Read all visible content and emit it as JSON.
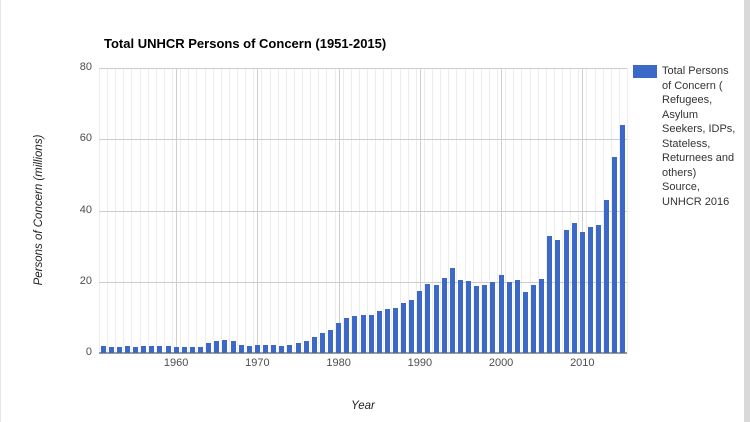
{
  "chart": {
    "title": "Total UNHCR Persons of Concern (1951-2015)",
    "y_axis_title": "Persons of Concern (millions)",
    "x_axis_title": "Year",
    "y_ticks": [
      0,
      20,
      40,
      60,
      80
    ],
    "x_ticks": [
      1960,
      1970,
      1980,
      1990,
      2000,
      2010
    ],
    "legend": {
      "lines": [
        "Total Persons",
        "of Concern (",
        "Refugees,",
        "Asylum",
        "Seekers, IDPs,",
        "Stateless,",
        "Returnees and",
        "others)",
        "Source,",
        "UNHCR 2016"
      ]
    },
    "colors": {
      "bar": "#3c69c8",
      "grid_major": "#cccccc",
      "grid_minor": "#ededed",
      "grid_decade": "#cfcfcf",
      "axis_line": "#999999",
      "tick_text": "#4d4d4d",
      "title_text": "#000000",
      "legend_text": "#333333"
    }
  },
  "chart_data": {
    "type": "bar",
    "title": "Total UNHCR Persons of Concern (1951-2015)",
    "xlabel": "Year",
    "ylabel": "Persons of Concern (millions)",
    "ylim": [
      0,
      80
    ],
    "grid": true,
    "legend_position": "right",
    "legend_label": "Total Persons of Concern ( Refugees, Asylum Seekers, IDPs, Stateless, Returnees and others) Source, UNHCR 2016",
    "categories": [
      1951,
      1952,
      1953,
      1954,
      1955,
      1956,
      1957,
      1958,
      1959,
      1960,
      1961,
      1962,
      1963,
      1964,
      1965,
      1966,
      1967,
      1968,
      1969,
      1970,
      1971,
      1972,
      1973,
      1974,
      1975,
      1976,
      1977,
      1978,
      1979,
      1980,
      1981,
      1982,
      1983,
      1984,
      1985,
      1986,
      1987,
      1988,
      1989,
      1990,
      1991,
      1992,
      1993,
      1994,
      1995,
      1996,
      1997,
      1998,
      1999,
      2000,
      2001,
      2002,
      2003,
      2004,
      2005,
      2006,
      2007,
      2008,
      2009,
      2010,
      2011,
      2012,
      2013,
      2014,
      2015
    ],
    "values": [
      2.1,
      1.8,
      1.8,
      2.0,
      1.8,
      1.9,
      2.0,
      1.9,
      1.9,
      1.7,
      1.6,
      1.6,
      1.6,
      2.8,
      3.5,
      3.7,
      3.3,
      2.2,
      2.1,
      2.2,
      2.3,
      2.3,
      2.1,
      2.2,
      2.8,
      3.5,
      4.5,
      5.5,
      6.5,
      8.5,
      9.7,
      10.3,
      10.6,
      10.7,
      11.8,
      12.3,
      12.7,
      14.0,
      15.0,
      17.4,
      19.5,
      19.0,
      21.0,
      24.0,
      20.5,
      20.3,
      18.9,
      19.0,
      20.0,
      21.8,
      19.9,
      20.6,
      17.0,
      19.0,
      20.8,
      32.9,
      31.7,
      34.5,
      36.5,
      34.0,
      35.4,
      35.8,
      42.9,
      54.9,
      63.9
    ]
  }
}
